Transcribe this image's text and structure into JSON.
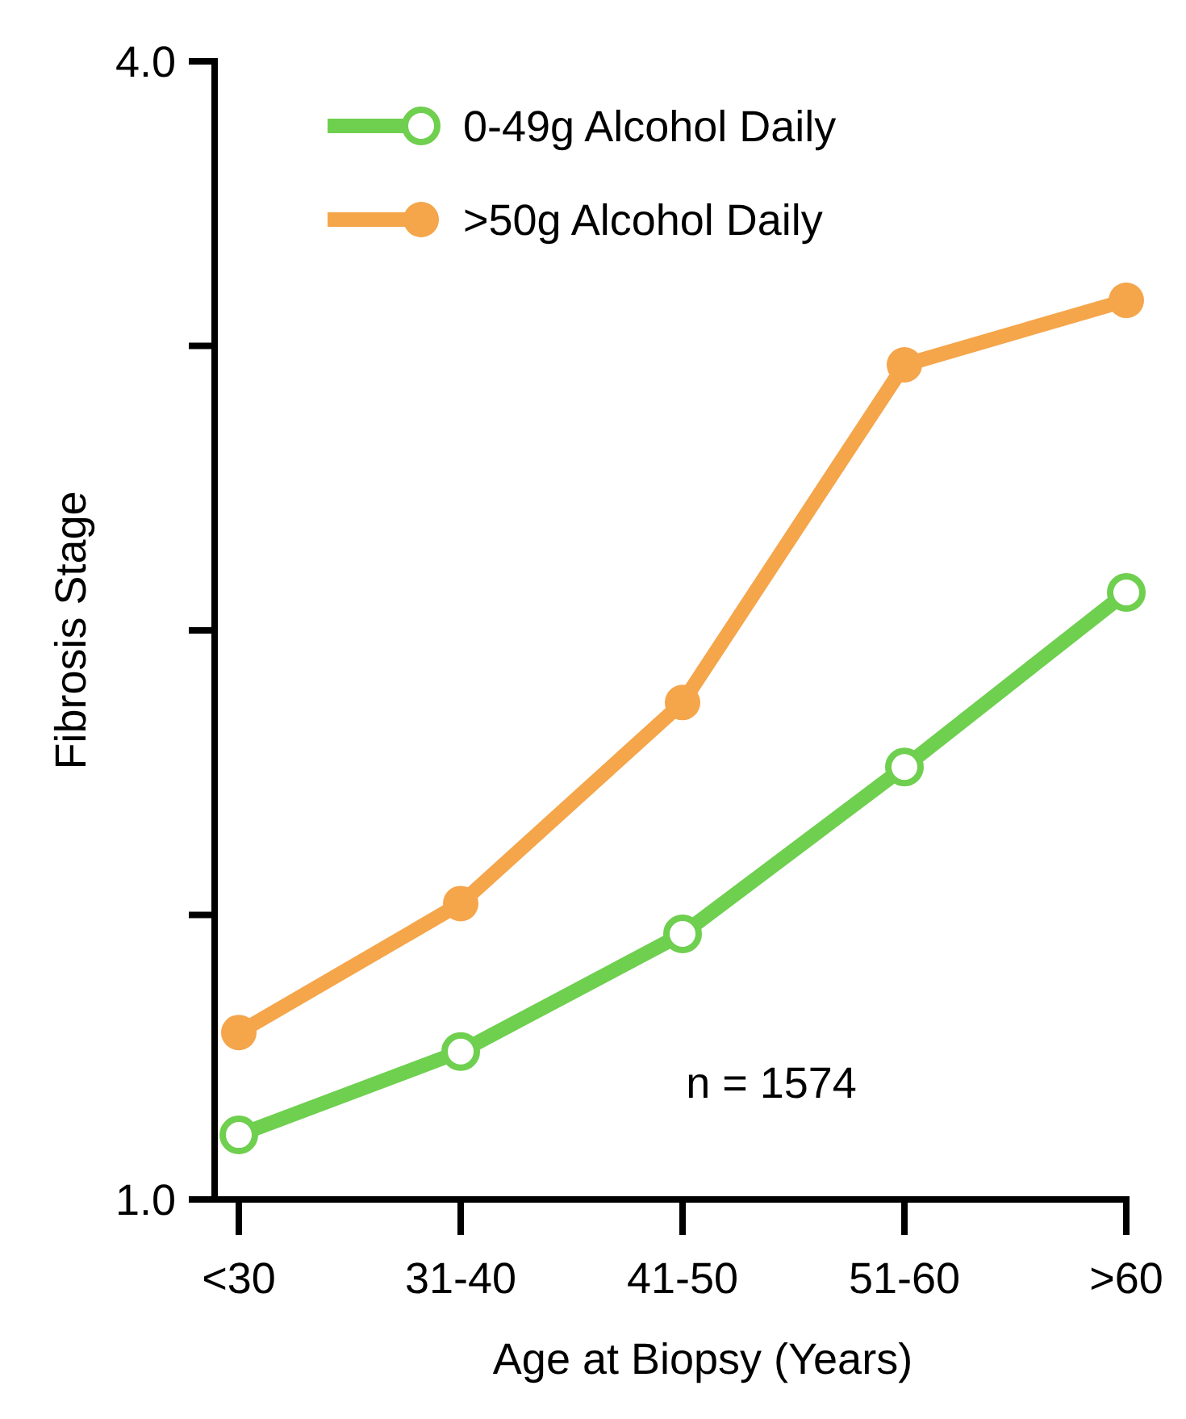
{
  "chart_data": {
    "type": "line",
    "xlabel": "Age at Biopsy (Years)",
    "ylabel": "Fibrosis Stage",
    "categories": [
      "<30",
      "31-40",
      "41-50",
      "51-60",
      ">60"
    ],
    "series": [
      {
        "name": "0-49g Alcohol Daily",
        "color": "#6fcf4f",
        "values": [
          1.17,
          1.39,
          1.7,
          2.14,
          2.6
        ]
      },
      {
        "name": ">50g Alcohol Daily",
        "color": "#f5a54a",
        "values": [
          1.44,
          1.78,
          2.31,
          3.2,
          3.37
        ]
      }
    ],
    "ylim": [
      1,
      4
    ],
    "yticks": [
      {
        "value": 1,
        "label": "1.0"
      },
      {
        "value": 1.75,
        "label": null
      },
      {
        "value": 2.5,
        "label": null
      },
      {
        "value": 3.25,
        "label": null
      },
      {
        "value": 4,
        "label": "4.0"
      }
    ],
    "legend": "top left",
    "marker": "circle",
    "grid": false,
    "annotations": [
      "n = 1574"
    ]
  }
}
